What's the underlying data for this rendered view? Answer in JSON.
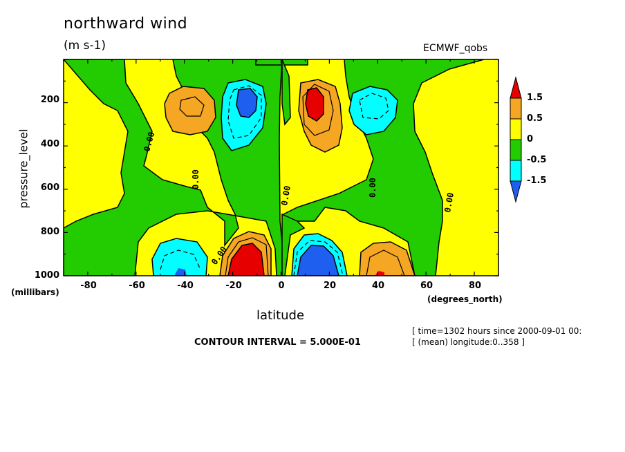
{
  "chart_data": {
    "type": "heatmap",
    "title": "northward wind",
    "units": "(m s-1)",
    "dataset": "ECMWF_qobs",
    "xlabel": "latitude",
    "x_units": "(degrees_north)",
    "ylabel": "pressure_level",
    "y_units": "(millibars)",
    "xlim": [
      -90,
      90
    ],
    "ylim": [
      1000,
      0
    ],
    "x_ticks": [
      "-80",
      "-60",
      "-40",
      "-20",
      "0",
      "20",
      "40",
      "60",
      "80"
    ],
    "y_ticks": [
      "200",
      "400",
      "600",
      "800",
      "1000"
    ],
    "contour_interval": "CONTOUR INTERVAL = 5.000E-01",
    "contour_label": "0.00",
    "colorbar": {
      "labels": [
        "1.5",
        "0.5",
        "0",
        "-0.5",
        "-1.5"
      ],
      "colors": [
        "#e60000",
        "#f5a623",
        "#ffff00",
        "#22cc00",
        "#00ffff",
        "#1f5ff0"
      ]
    },
    "features": [
      {
        "name": "maximum",
        "x": -40,
        "y": 220,
        "level": "0.5 to 1.5"
      },
      {
        "name": "minimum",
        "x": -15,
        "y": 220,
        "level": "below -1.5"
      },
      {
        "name": "maximum",
        "x": 14,
        "y": 220,
        "level": "above 1.5"
      },
      {
        "name": "minimum",
        "x": 43,
        "y": 220,
        "level": "-0.5 to -1.5"
      },
      {
        "name": "minimum",
        "x": -47,
        "y": 930,
        "level": "-0.5 to -1.5"
      },
      {
        "name": "maximum",
        "x": -15,
        "y": 940,
        "level": "above 1.5"
      },
      {
        "name": "minimum",
        "x": 15,
        "y": 940,
        "level": "below -1.5"
      },
      {
        "name": "maximum",
        "x": 43,
        "y": 950,
        "level": "0.5 to 1.5"
      }
    ]
  },
  "info": {
    "time": "[ time=1302 hours since 2000-09-01 00:",
    "longitude": "[ (mean) longitude:0..358 ]"
  }
}
